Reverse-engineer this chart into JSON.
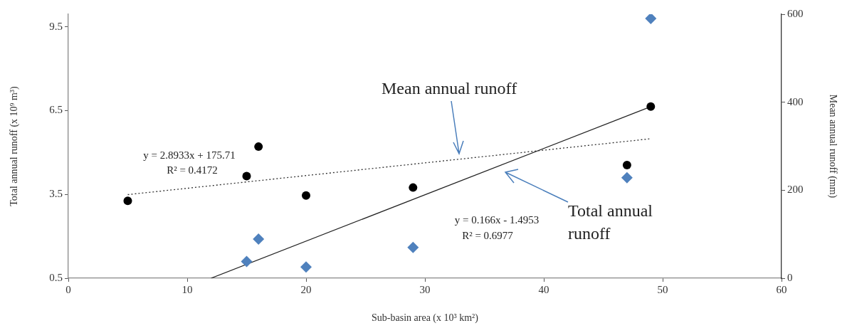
{
  "chart_data": {
    "type": "scatter",
    "xlabel": "Sub-basin area (x 10³ km²)",
    "ylabel": "Total annual runoff (x 10⁹ m³)",
    "y2label": "Mean annual runoff (mm)",
    "xlim": [
      0,
      60
    ],
    "xticks": [
      0,
      10,
      20,
      30,
      40,
      50,
      60
    ],
    "ylim": [
      0.5,
      9.95
    ],
    "yticks": [
      0.5,
      3.5,
      6.5,
      9.5
    ],
    "y2lim": [
      0,
      600
    ],
    "y2ticks": [
      0,
      200,
      400,
      600
    ],
    "series": [
      {
        "type": "scatter",
        "color": "#4f81bd",
        "marker": "diamond",
        "x": [
          15,
          16,
          20,
          29,
          47,
          49
        ],
        "values": [
          1.1,
          1.9,
          0.9,
          1.6,
          4.1,
          9.8
        ]
      },
      {
        "type": "scatter",
        "axis": "y2",
        "color": "#000000",
        "marker": "circle",
        "x": [
          5,
          15,
          16,
          20,
          29,
          47,
          49
        ],
        "values": [
          176,
          232,
          299,
          188,
          206,
          257,
          390
        ]
      },
      {
        "type": "line",
        "color": "#222222",
        "line_style": "solid",
        "marker": "none",
        "x": [
          12,
          49
        ],
        "values": [
          0.5,
          6.64
        ]
      },
      {
        "type": "line",
        "axis": "y2",
        "color": "#333333",
        "line_style": "dotted",
        "marker": "none",
        "x": [
          5,
          49
        ],
        "values": [
          190,
          317
        ]
      }
    ],
    "annotations": [
      "y = 2.8933x  + 175.71",
      "R² = 0.4172",
      "y = 0.166x  - 1.4953",
      "R² = 0.6977",
      "Mean annual runoff",
      "Total annual runoff"
    ]
  }
}
